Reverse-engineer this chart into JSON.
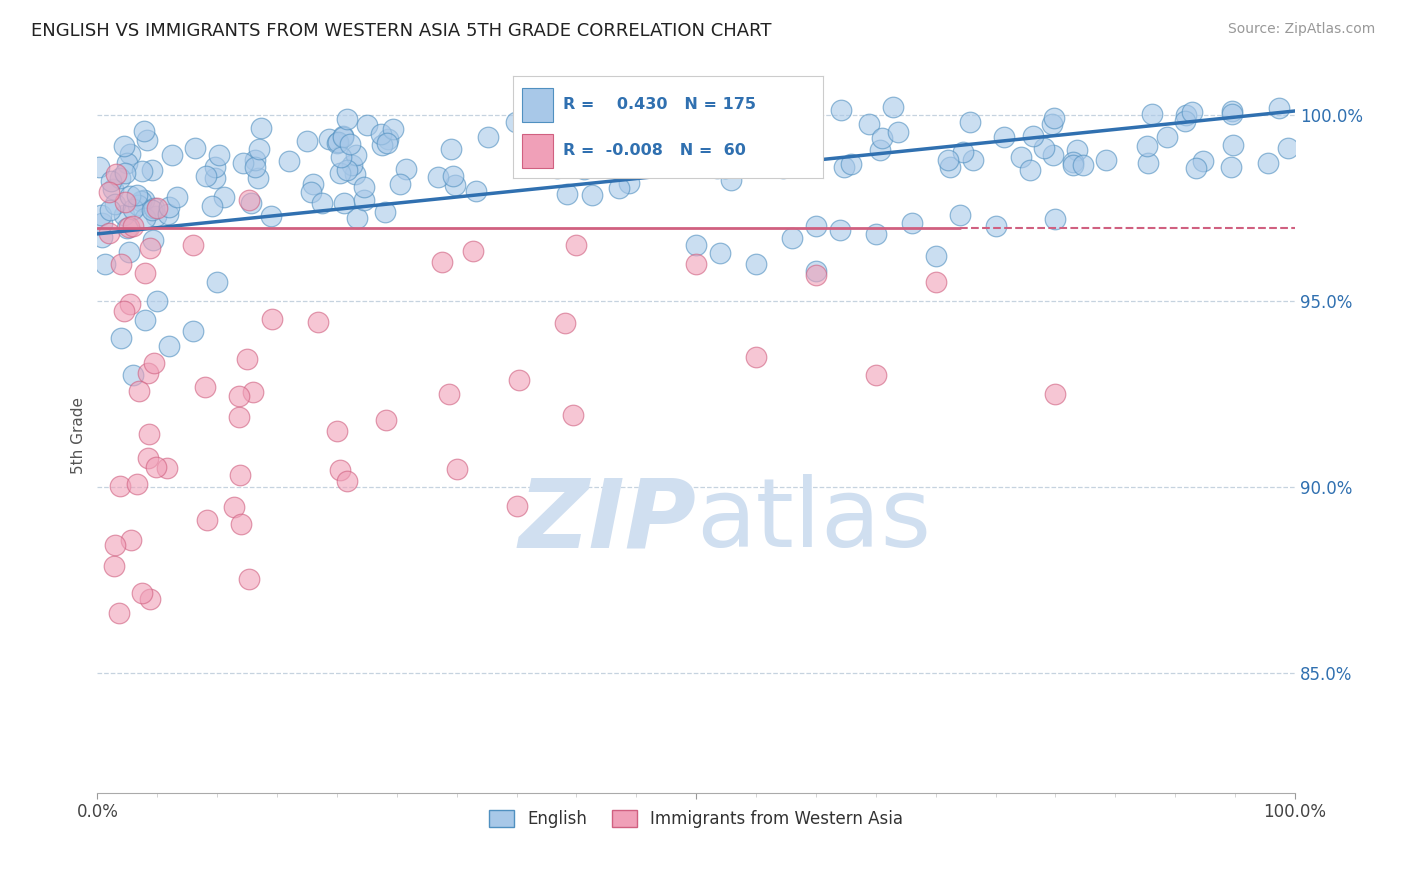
{
  "title": "ENGLISH VS IMMIGRANTS FROM WESTERN ASIA 5TH GRADE CORRELATION CHART",
  "source": "Source: ZipAtlas.com",
  "ylabel": "5th Grade",
  "xlim": [
    0.0,
    1.0
  ],
  "ylim": [
    0.818,
    1.01
  ],
  "yticks": [
    0.85,
    0.9,
    0.95,
    1.0
  ],
  "ytick_labels": [
    "85.0%",
    "90.0%",
    "95.0%",
    "100.0%"
  ],
  "blue_R": 0.43,
  "blue_N": 175,
  "pink_R": -0.008,
  "pink_N": 60,
  "blue_fill": "#a8c8e8",
  "blue_edge": "#5090c0",
  "pink_fill": "#f0a0b8",
  "pink_edge": "#d06080",
  "blue_line_color": "#3070b0",
  "pink_line_color": "#d06080",
  "legend_label_blue": "English",
  "legend_label_pink": "Immigrants from Western Asia",
  "background_color": "#ffffff",
  "watermark_color": "#d0dff0"
}
